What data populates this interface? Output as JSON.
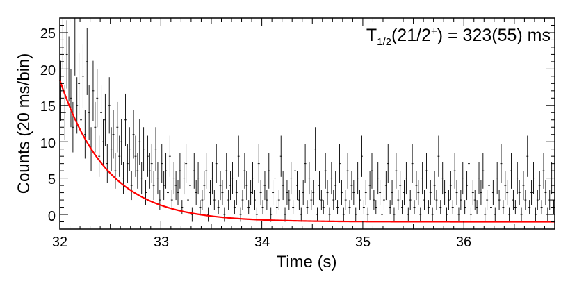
{
  "chart_data": {
    "type": "scatter",
    "title": "",
    "xlabel": "Time (s)",
    "ylabel": "Counts (20 ms/bin)",
    "xlim": [
      32.0,
      36.9
    ],
    "ylim": [
      -2,
      27
    ],
    "x_ticks": [
      32,
      33,
      34,
      35,
      36
    ],
    "y_ticks": [
      0,
      5,
      10,
      15,
      20,
      25
    ],
    "y_tick_labels": [
      "0",
      "5",
      "10",
      "15",
      "20",
      "25"
    ],
    "x_tick_labels": [
      "32",
      "33",
      "34",
      "35",
      "36"
    ],
    "grid": false,
    "legend": "none",
    "annotation": {
      "main": "T",
      "sub": "1/2",
      "open": "(21/2",
      "sup": "+",
      "close": ") = 323(55) ms"
    },
    "bin_width_s": 0.02,
    "series": [
      {
        "style": "points-with-error-bars",
        "color": "#000000",
        "x_start": 32.01,
        "x_step": 0.02,
        "y": [
          17,
          25,
          14,
          22,
          20,
          16,
          12,
          24,
          15,
          18,
          13,
          19,
          11,
          21,
          14,
          9,
          17,
          12,
          16,
          8,
          14,
          10,
          13,
          7,
          15,
          9,
          11,
          6,
          12,
          8,
          10,
          5,
          13,
          7,
          9,
          4,
          11,
          8,
          6,
          10,
          5,
          9,
          3,
          8,
          6,
          7,
          4,
          9,
          5,
          2,
          7,
          4,
          6,
          3,
          8,
          2,
          5,
          4,
          3,
          6,
          1,
          5,
          7,
          2,
          4,
          0,
          6,
          3,
          5,
          1,
          2,
          4,
          6,
          0,
          3,
          5,
          2,
          7,
          1,
          4,
          3,
          0,
          6,
          2,
          4,
          5,
          1,
          3,
          8,
          0,
          2,
          6,
          4,
          1,
          3,
          5,
          2,
          0,
          7,
          3,
          1,
          4,
          2,
          6,
          0,
          3,
          5,
          1,
          2,
          8,
          4,
          0,
          3,
          2,
          5,
          1,
          6,
          4,
          2,
          0,
          3,
          7,
          1,
          5,
          2,
          3,
          9,
          0,
          4,
          2,
          1,
          6,
          3,
          0,
          5,
          2,
          4,
          1,
          7,
          3,
          0,
          2,
          6,
          1,
          4,
          3,
          0,
          5,
          2,
          8,
          1,
          3,
          0,
          4,
          6,
          2,
          1,
          5,
          3,
          0,
          2,
          4,
          7,
          1,
          3,
          0,
          6,
          2,
          4,
          1,
          3,
          5,
          0,
          2,
          7,
          1,
          4,
          3,
          0,
          5,
          2,
          6,
          1,
          3,
          0,
          4,
          2,
          8,
          1,
          5,
          3,
          0,
          2,
          4,
          1,
          6,
          3,
          0,
          2,
          5,
          1,
          4,
          7,
          0,
          3,
          2,
          1,
          5,
          3,
          6,
          0,
          2,
          4,
          1,
          3,
          0,
          5,
          2,
          7,
          1,
          4,
          3,
          0,
          6,
          2,
          1,
          5,
          3,
          0,
          4,
          2,
          8,
          1,
          3,
          5,
          0,
          2,
          4,
          1,
          6,
          3,
          0,
          2,
          5,
          1,
          4,
          3
        ],
        "y_err": "sqrt(counts)"
      },
      {
        "style": "line",
        "color": "#ff0000",
        "function": "exponential decay + constant",
        "amplitude": 19.5,
        "background": -1.0,
        "half_life_s": 0.323,
        "x_range": [
          32.0,
          36.9
        ]
      }
    ]
  }
}
